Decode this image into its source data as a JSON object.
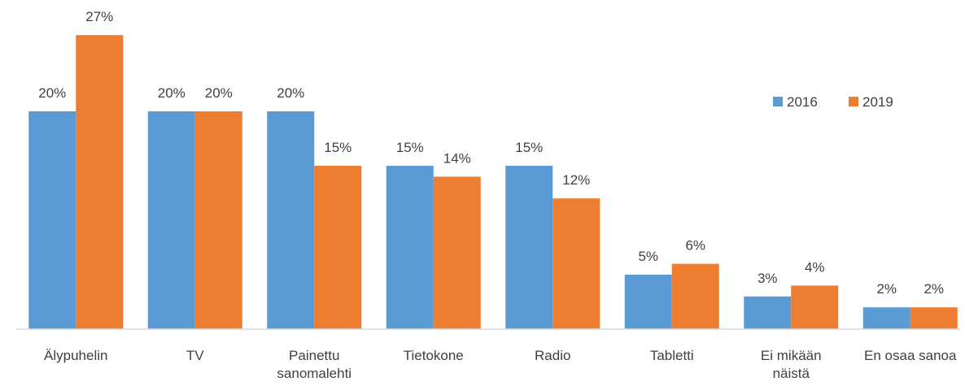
{
  "chart_data": {
    "type": "bar",
    "title": "",
    "xlabel": "",
    "ylabel": "",
    "ylim": [
      0,
      27
    ],
    "grid": false,
    "legend_position": "right",
    "categories": [
      "Älypuhelin",
      "TV",
      "Painettu sanomalehti",
      "Tietokone",
      "Radio",
      "Tabletti",
      "Ei mikään näistä",
      "En osaa sanoa"
    ],
    "series": [
      {
        "name": "2016",
        "color": "#5B9BD5",
        "values": [
          20,
          20,
          20,
          15,
          15,
          5,
          3,
          2
        ],
        "labels": [
          "20%",
          "20%",
          "20%",
          "15%",
          "15%",
          "5%",
          "3%",
          "2%"
        ]
      },
      {
        "name": "2019",
        "color": "#ED7D31",
        "values": [
          27,
          20,
          15,
          14,
          12,
          6,
          4,
          2
        ],
        "labels": [
          "27%",
          "20%",
          "15%",
          "14%",
          "12%",
          "6%",
          "4%",
          "2%"
        ]
      }
    ]
  }
}
